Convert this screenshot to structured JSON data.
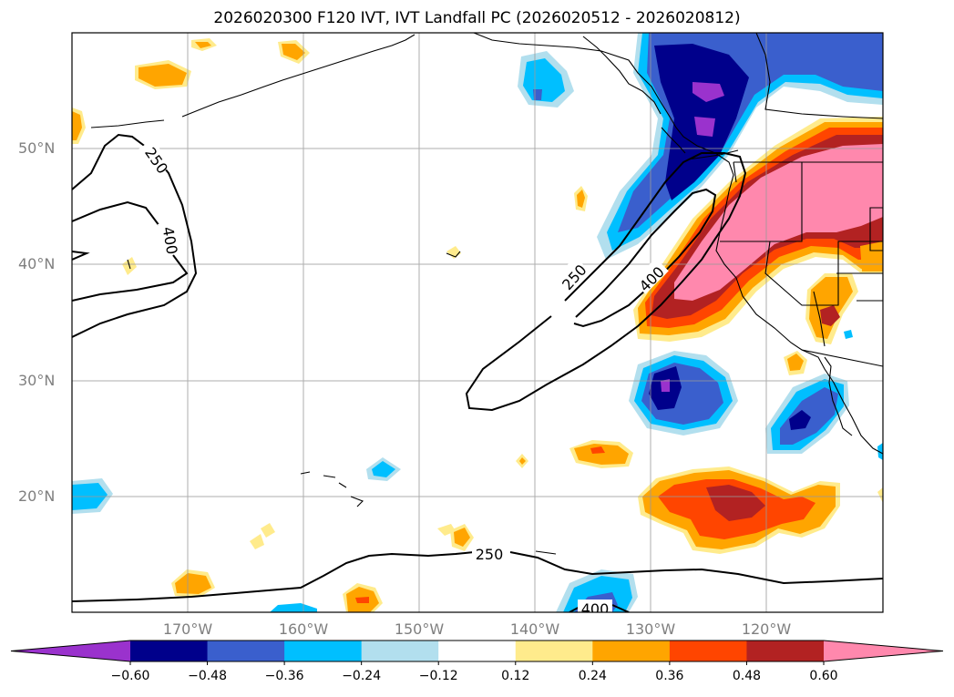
{
  "title": "2026020300 F120 IVT, IVT Landfall PC (2026020512 - 2026020812)",
  "lat_labels": [
    "50°N",
    "40°N",
    "30°N",
    "20°N"
  ],
  "lon_labels": [
    "170°W",
    "160°W",
    "150°W",
    "140°W",
    "130°W",
    "120°W"
  ],
  "contour_labels": [
    "250",
    "400",
    "250",
    "400",
    "250",
    "400"
  ],
  "colorbar": {
    "colors": [
      "#9a32cd",
      "#00008b",
      "#3a5fcd",
      "#00bfff",
      "#b2dfee",
      "#ffffff",
      "#ffeb8c",
      "#ffa500",
      "#ff4500",
      "#b22222",
      "#ff88ad"
    ],
    "ticks": [
      "−0.60",
      "−0.48",
      "−0.36",
      "−0.24",
      "−0.12",
      "0.12",
      "0.24",
      "0.36",
      "0.48",
      "0.60"
    ]
  }
}
